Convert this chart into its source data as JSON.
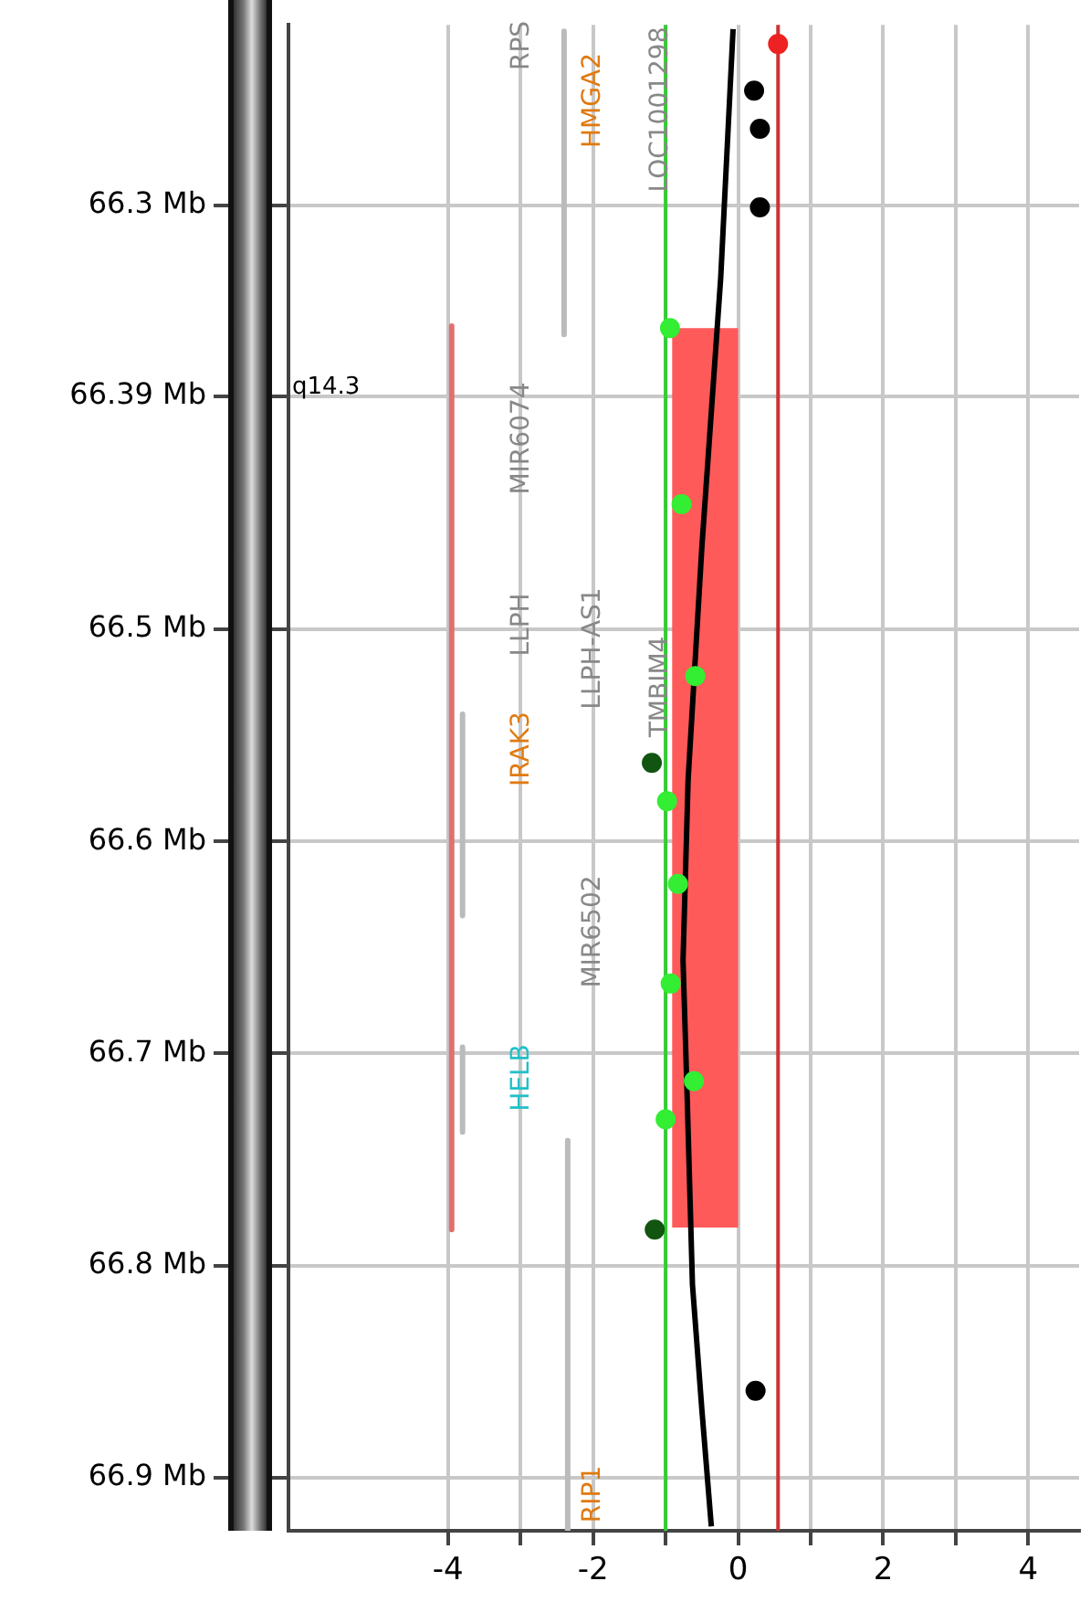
{
  "chart_data": {
    "type": "scatter",
    "xlim": [
      -6.2,
      4.7
    ],
    "xticks": [
      -4,
      {
        "value": -3,
        "label": null
      },
      -2,
      {
        "value": -1,
        "label": null
      },
      0,
      {
        "value": 1,
        "label": null
      },
      2,
      {
        "value": 3,
        "label": null
      },
      4
    ],
    "ylim": [
      66.925,
      66.215
    ],
    "yticks": [
      {
        "value": 66.3,
        "label": "66.3 Mb"
      },
      {
        "value": 66.39,
        "label": "66.39 Mb"
      },
      {
        "value": 66.5,
        "label": "66.5 Mb"
      },
      {
        "value": 66.6,
        "label": "66.6 Mb"
      },
      {
        "value": 66.7,
        "label": "66.7 Mb"
      },
      {
        "value": 66.8,
        "label": "66.8 Mb"
      },
      {
        "value": 66.9,
        "label": "66.9 Mb"
      }
    ],
    "grid": true,
    "legend": false,
    "series": [
      {
        "type": "area",
        "color": "#ff5a5a",
        "x": [
          -0.91,
          0,
          0,
          -0.91,
          -0.91
        ],
        "values": [
          66.358,
          66.358,
          66.782,
          66.782,
          66.358
        ]
      },
      {
        "type": "line",
        "color": "#bbbbbb",
        "x": [
          -2.4,
          -2.4
        ],
        "values": [
          66.218,
          66.361
        ]
      },
      {
        "type": "line",
        "color": "#bbbbbb",
        "x": [
          -3.8,
          -3.8
        ],
        "values": [
          66.54,
          66.635
        ]
      },
      {
        "type": "line",
        "color": "#bbbbbb",
        "x": [
          -3.8,
          -3.8
        ],
        "values": [
          66.697,
          66.737
        ]
      },
      {
        "type": "line",
        "color": "#bbbbbb",
        "x": [
          -2.35,
          -2.35
        ],
        "values": [
          66.741,
          66.925
        ]
      },
      {
        "type": "line",
        "color": "#e07070",
        "x": [
          -3.95,
          -3.95
        ],
        "values": [
          66.357,
          66.783
        ]
      },
      {
        "type": "line",
        "color": "#000000",
        "x": [
          -0.07,
          -0.24,
          -0.5,
          -0.69,
          -0.76,
          -0.7,
          -0.63,
          -0.5,
          -0.37
        ],
        "values": [
          66.217,
          66.334,
          66.461,
          66.571,
          66.656,
          66.724,
          66.809,
          66.868,
          66.923
        ]
      },
      {
        "marker": "circle",
        "color": "#000000",
        "x": [
          0.22,
          0.3,
          0.3,
          0.24
        ],
        "values": [
          66.246,
          66.264,
          66.301,
          66.859
        ]
      },
      {
        "marker": "circle",
        "color": "#33ee33",
        "x": [
          -0.94,
          -0.78,
          -0.59,
          -0.98,
          -0.83,
          -0.93,
          -0.61,
          -1.0
        ],
        "values": [
          66.358,
          66.441,
          66.522,
          66.581,
          66.62,
          66.667,
          66.713,
          66.731
        ]
      },
      {
        "marker": "circle",
        "color": "#115511",
        "x": [
          -1.19,
          -1.15
        ],
        "values": [
          66.563,
          66.783
        ]
      },
      {
        "marker": "circle",
        "color": "#ee2222",
        "x": [
          0.55
        ],
        "values": [
          66.224
        ]
      }
    ],
    "ref_lines": [
      {
        "axis": "x",
        "value": -1,
        "color": "#33cc33"
      },
      {
        "axis": "x",
        "value": 0.55,
        "color": "#cc3333"
      }
    ],
    "annotations": [
      "q14.3",
      "RPS",
      "HMGA2",
      "LOC1001298",
      "MIR6074",
      "LLPH",
      "LLPH-AS1",
      "TMBIM4",
      "IRAK3",
      "MIR6502",
      "HELB",
      "RIP1"
    ]
  }
}
